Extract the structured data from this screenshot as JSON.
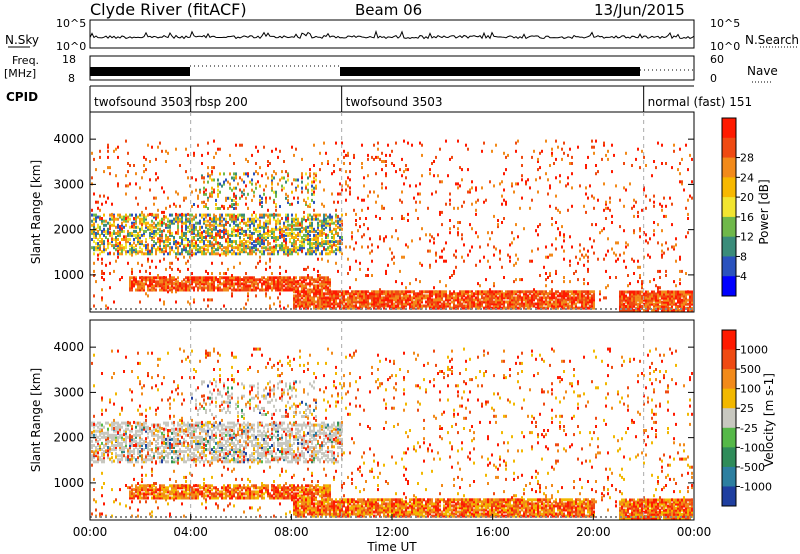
{
  "header": {
    "station": "Clyde River (fitACF)",
    "beam": "Beam 06",
    "date": "13/Jun/2015"
  },
  "noise_panel": {
    "left_label": "N.Sky",
    "right_label": "N.Search",
    "left_ticks": [
      "10^5",
      "10^0"
    ],
    "right_ticks": [
      "10^5",
      "10^0"
    ]
  },
  "freq_panel": {
    "left_label_1": "Freq.",
    "left_label_2": "[MHz]",
    "right_label": "Nave",
    "left_ticks": [
      "18",
      "8"
    ],
    "right_ticks": [
      "60",
      "0"
    ]
  },
  "cpid_panel": {
    "label": "CPID",
    "segments": [
      {
        "label": "twofsound 3503",
        "start_h": 0,
        "end_h": 4
      },
      {
        "label": "rbsp 200",
        "start_h": 4,
        "end_h": 10
      },
      {
        "label": "twofsound 3503",
        "start_h": 10,
        "end_h": 22
      },
      {
        "label": "normal (fast) 151",
        "start_h": 22,
        "end_h": 24
      }
    ]
  },
  "chart_data": [
    {
      "type": "heatmap",
      "name": "power",
      "ylabel": "Slant Range [km]",
      "yticks": [
        "1000",
        "2000",
        "3000",
        "4000"
      ],
      "ylim": [
        180,
        4600
      ],
      "colorbar_label": "Power [dB]",
      "colorbar_ticks": [
        "4",
        "8",
        "12",
        "16",
        "20",
        "24",
        "28"
      ],
      "colors": [
        "#0000ff",
        "#2a52be",
        "#3a8c7a",
        "#6fb84a",
        "#f2e530",
        "#f7b800",
        "#f28a1a",
        "#ef4a12",
        "#ff1a00"
      ]
    },
    {
      "type": "heatmap",
      "name": "velocity",
      "ylabel": "Slant Range [km]",
      "yticks": [
        "1000",
        "2000",
        "3000",
        "4000"
      ],
      "ylim": [
        180,
        4600
      ],
      "colorbar_label": "Velocity [m s-1]",
      "colorbar_ticks": [
        "1000",
        "500",
        "100",
        "25",
        "-25",
        "-100",
        "-500",
        "-1000"
      ],
      "colors": [
        "#1f3fa0",
        "#2d7fa0",
        "#2f8c5a",
        "#55b848",
        "#c8c8c0",
        "#f2b800",
        "#f28a1a",
        "#ef4a12",
        "#ff1a00"
      ]
    }
  ],
  "x_axis": {
    "label": "Time UT",
    "ticks": [
      "00:00",
      "04:00",
      "08:00",
      "12:00",
      "16:00",
      "20:00",
      "00:00"
    ]
  }
}
